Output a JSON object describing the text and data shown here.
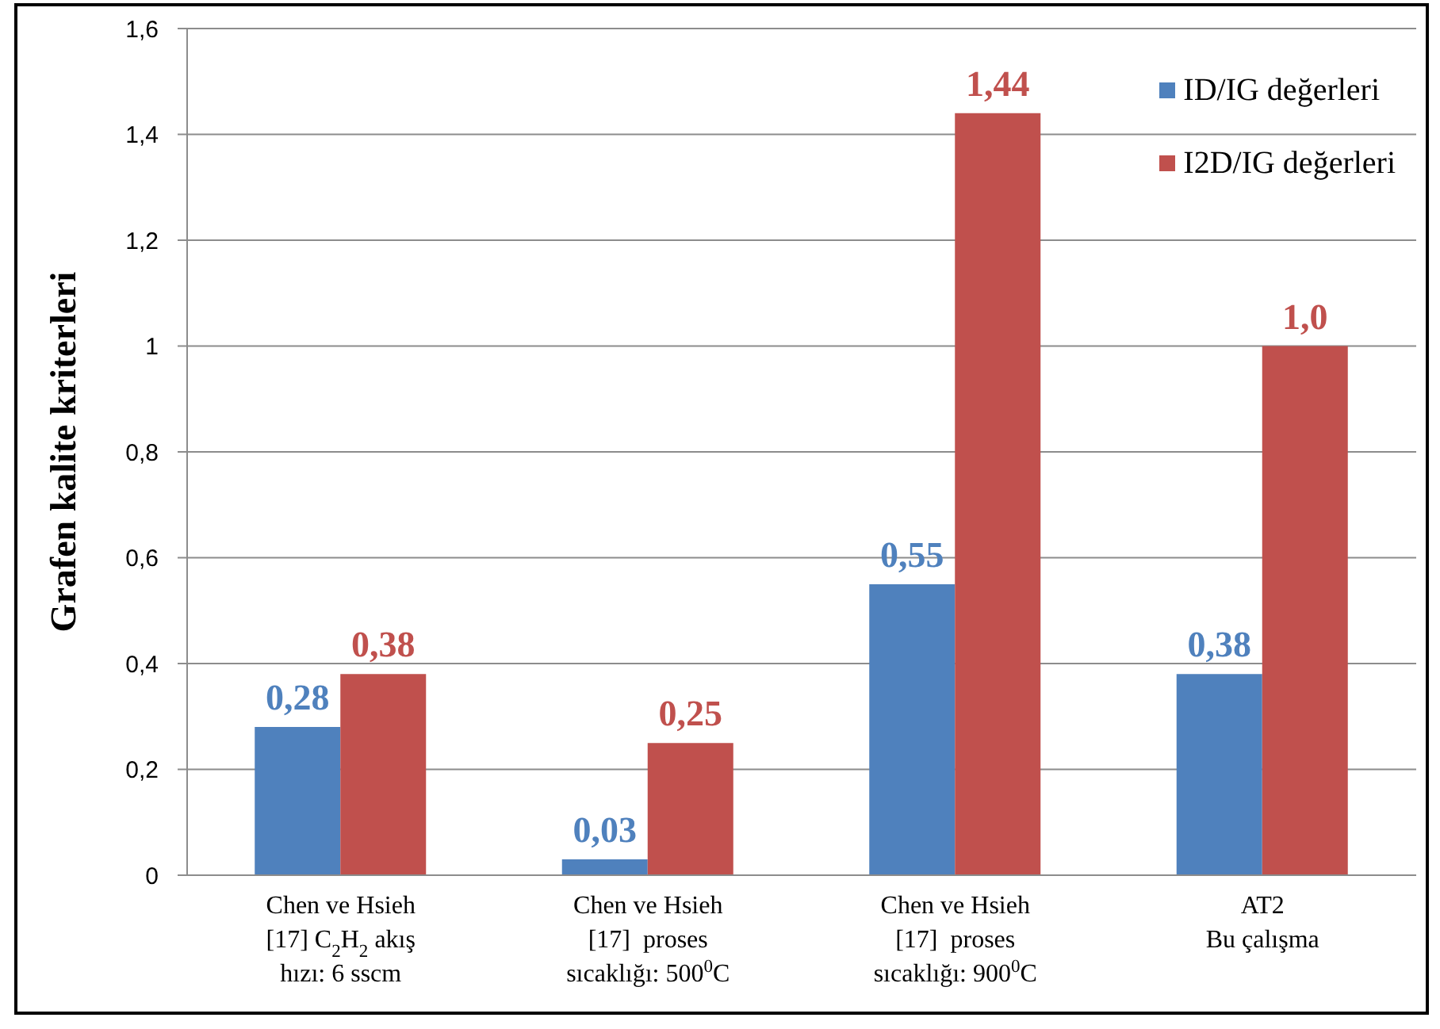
{
  "chart_data": {
    "type": "bar",
    "ylabel": "Grafen kalite kriterleri",
    "categories": [
      "Chen ve Hsieh\n[17] C$_{2}$H$_{2}$ akış\nhızı: 6 sscm",
      "Chen ve Hsieh\n[17]  proses\nsıcaklığı: 500$^{0}$C",
      "Chen ve Hsieh\n[17]  proses\nsıcaklığı: 900$^{0}$C",
      "AT2\nBu çalışma"
    ],
    "series": [
      {
        "name": "ID/IG değerleri",
        "color": "#4f81bd",
        "values": [
          0.28,
          0.03,
          0.55,
          0.38
        ],
        "value_labels": [
          "0,28",
          "0,03",
          "0,55",
          "0,38"
        ]
      },
      {
        "name": "I2D/IG değerleri",
        "color": "#c0504d",
        "values": [
          0.38,
          0.25,
          1.44,
          1.0
        ],
        "value_labels": [
          "0,38",
          "0,25",
          "1,44",
          "1,0"
        ]
      }
    ],
    "ylim": [
      0,
      1.6
    ],
    "yticks": [
      0,
      {
        "value": 0.2,
        "label": "0,2"
      },
      {
        "value": 0.4,
        "label": "0,4"
      },
      {
        "value": 0.6,
        "label": "0,6"
      },
      {
        "value": 0.8,
        "label": "0,8"
      },
      1,
      {
        "value": 1.2,
        "label": "1,2"
      },
      {
        "value": 1.4,
        "label": "1,4"
      },
      {
        "value": 1.6,
        "label": "1,6"
      }
    ],
    "grid": "y",
    "legend": "top right"
  }
}
